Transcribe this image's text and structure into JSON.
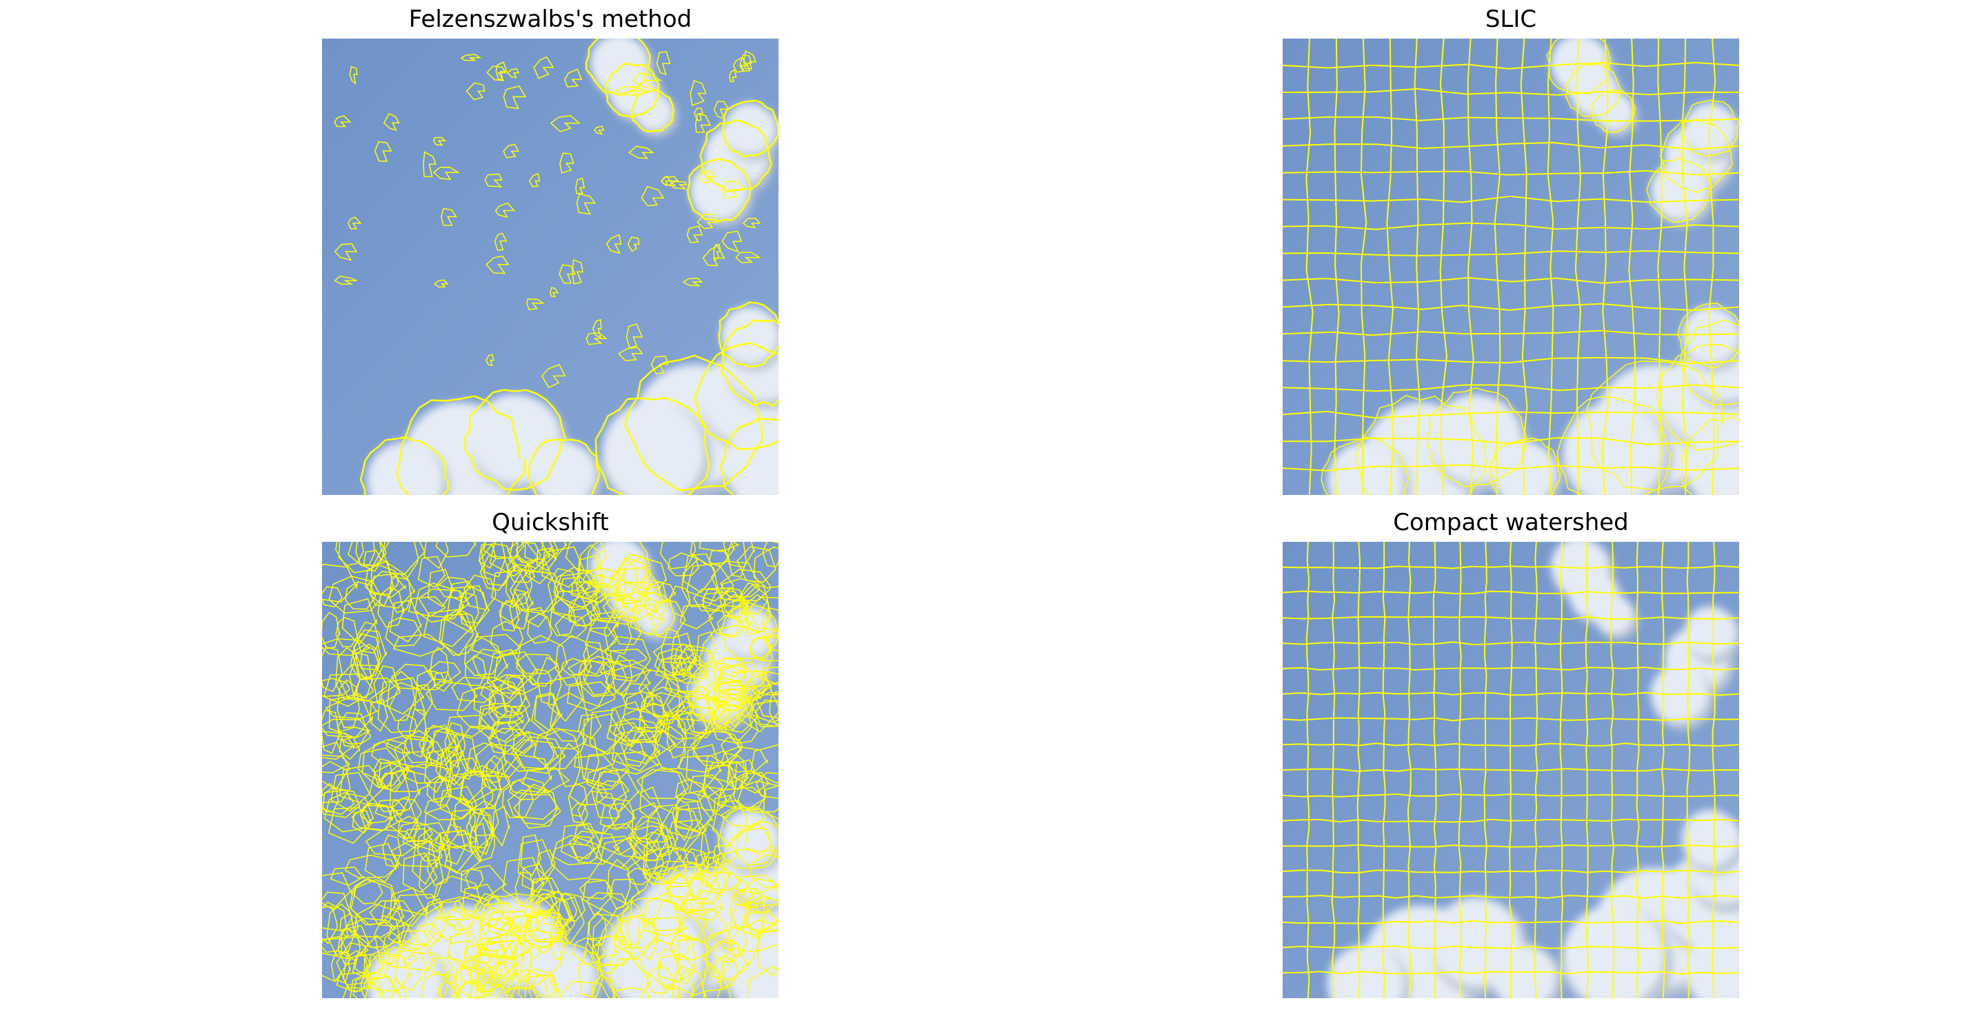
{
  "panels": [
    {
      "title": "Felzenszwalbs's method",
      "method": "felzenszwalb"
    },
    {
      "title": "SLIC",
      "method": "slic"
    },
    {
      "title": "Quickshift",
      "method": "quickshift"
    },
    {
      "title": "Compact watershed",
      "method": "watershed"
    }
  ],
  "colors": {
    "sky_top": "#6f93c8",
    "sky_bottom": "#87a6d4",
    "cloud": "#e6ecf5",
    "cloud_shadow": "#b9c4d4",
    "boundary": "#ffff00"
  }
}
